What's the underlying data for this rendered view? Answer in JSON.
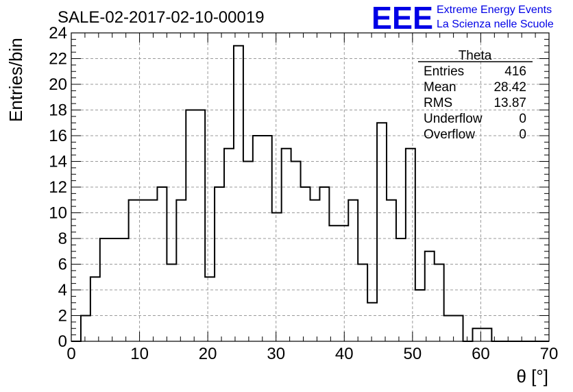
{
  "title": "SALE-02-2017-02-10-00019",
  "logo": {
    "mark": "EEE",
    "line1": "Extreme Energy Events",
    "line2": "La Scienza nelle Scuole",
    "color": "#0000e6"
  },
  "stats_box": {
    "name": "Theta",
    "rows": [
      {
        "label": "Entries",
        "value": "416"
      },
      {
        "label": "Mean",
        "value": "28.42"
      },
      {
        "label": "RMS",
        "value": "13.87"
      },
      {
        "label": "Underflow",
        "value": "0"
      },
      {
        "label": "Overflow",
        "value": "0"
      }
    ]
  },
  "chart_data": {
    "type": "bar",
    "style": "step-histogram",
    "title": "SALE-02-2017-02-10-00019",
    "xlabel": "θ [°]",
    "ylabel": "Entries/bin",
    "xlim": [
      0,
      70
    ],
    "ylim": [
      0,
      24
    ],
    "bin_width": 1.4,
    "x_ticks": [
      0,
      10,
      20,
      30,
      40,
      50,
      60,
      70
    ],
    "y_ticks": [
      0,
      2,
      4,
      6,
      8,
      10,
      12,
      14,
      16,
      18,
      20,
      22,
      24
    ],
    "grid": true,
    "legend": "none",
    "values": [
      0,
      2,
      5,
      8,
      8,
      8,
      11,
      11,
      11,
      12,
      6,
      11,
      18,
      18,
      5,
      12,
      15,
      23,
      14,
      16,
      16,
      10,
      15,
      14,
      12,
      11,
      12,
      9,
      9,
      11,
      6,
      3,
      17,
      11,
      8,
      15,
      4,
      7,
      6,
      2,
      2,
      0,
      1,
      1,
      0,
      0,
      0,
      0,
      0,
      0
    ],
    "line_color": "#000000"
  }
}
